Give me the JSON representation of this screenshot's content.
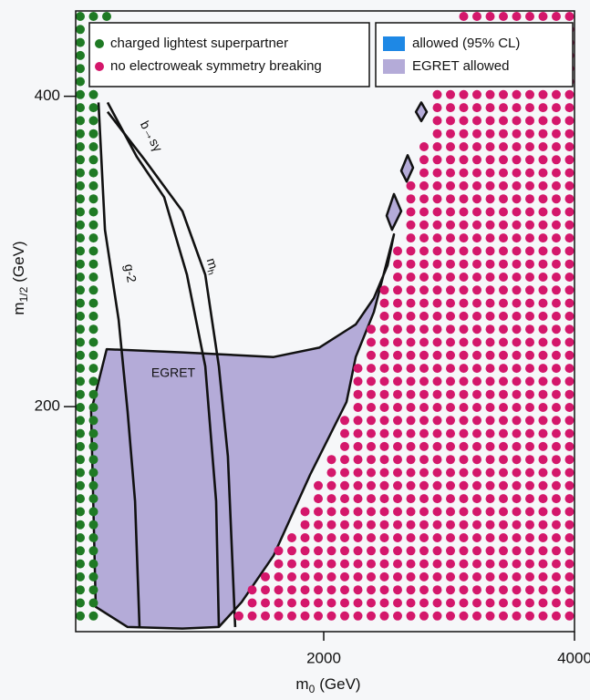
{
  "chart_data": {
    "type": "region",
    "xlabel": {
      "symbol": "m",
      "subscript": "0",
      "unit": "(GeV)"
    },
    "ylabel": {
      "symbol": "m",
      "subscript": "1/2",
      "unit": "(GeV)"
    },
    "xlim": [
      0,
      4000
    ],
    "ylim": [
      55,
      455
    ],
    "xticks": [
      2000,
      4000
    ],
    "yticks": [
      200,
      400
    ],
    "series": [
      {
        "name": "charged lightest superpartner",
        "color": "#1f7a24",
        "style": "dots",
        "polygons": [
          [
            [
              0,
              55
            ],
            [
              230,
              55
            ],
            [
              230,
              432
            ],
            [
              330,
              432
            ],
            [
              330,
              455
            ],
            [
              0,
              455
            ]
          ]
        ]
      },
      {
        "name": "no electroweak symmetry breaking",
        "color": "#d4176b",
        "style": "dots",
        "polygons": [
          [
            [
              3030,
              455
            ],
            [
              2836,
              402
            ],
            [
              2800,
              375
            ],
            [
              2727,
              358
            ],
            [
              2618,
              314
            ],
            [
              2545,
              291
            ],
            [
              2436,
              267
            ],
            [
              2291,
              238
            ],
            [
              2218,
              215
            ],
            [
              2109,
              180
            ],
            [
              1818,
              133
            ],
            [
              1600,
              104
            ],
            [
              1345,
              74
            ],
            [
              1236,
              55
            ],
            [
              4000,
              55
            ],
            [
              4000,
              455
            ]
          ]
        ]
      },
      {
        "name": "allowed (95% CL)",
        "color": "#1e88e5",
        "style": "fill",
        "polygons": [
          [
            [
              1455,
              185
            ],
            [
              1745,
              200
            ],
            [
              2036,
              220
            ],
            [
              2167,
              235
            ],
            [
              2218,
              226
            ],
            [
              2109,
              197
            ],
            [
              1891,
              162
            ],
            [
              1673,
              121
            ],
            [
              1527,
              106
            ],
            [
              1455,
              104
            ],
            [
              1396,
              144
            ],
            [
              1382,
              180
            ]
          ]
        ]
      },
      {
        "name": "EGRET allowed",
        "color": "#b4abd8",
        "style": "fill",
        "polygons": [
          [
            [
              269,
              237
            ],
            [
              873,
              235
            ],
            [
              1600,
              232
            ],
            [
              1964,
              238
            ],
            [
              2255,
              253
            ],
            [
              2400,
              270
            ],
            [
              2509,
              291
            ],
            [
              2560,
              311
            ],
            [
              2400,
              261
            ],
            [
              2255,
              232
            ],
            [
              2182,
              203
            ],
            [
              1891,
              156
            ],
            [
              1600,
              104
            ],
            [
              1345,
              74
            ],
            [
              1164,
              58
            ],
            [
              873,
              57
            ],
            [
              436,
              58
            ],
            [
              182,
              71
            ],
            [
              145,
              197
            ]
          ],
          [
            [
              2778,
              396
            ],
            [
              2822,
              390
            ],
            [
              2778,
              384
            ],
            [
              2735,
              390
            ]
          ],
          [
            [
              2669,
              362
            ],
            [
              2713,
              354
            ],
            [
              2662,
              345
            ],
            [
              2618,
              352
            ]
          ],
          [
            [
              2560,
              337
            ],
            [
              2618,
              326
            ],
            [
              2545,
              314
            ],
            [
              2502,
              323
            ]
          ]
        ]
      }
    ],
    "curves": [
      {
        "label": "b→sγ",
        "points": [
          [
            276,
            396
          ],
          [
            509,
            361
          ],
          [
            727,
            335
          ],
          [
            909,
            285
          ],
          [
            1055,
            226
          ],
          [
            1142,
            139
          ],
          [
            1164,
            58
          ]
        ]
      },
      {
        "label": "g-2",
        "points": [
          [
            204,
            396
          ],
          [
            255,
            314
          ],
          [
            364,
            256
          ],
          [
            436,
            197
          ],
          [
            495,
            139
          ],
          [
            531,
            58
          ]
        ]
      },
      {
        "label": "m",
        "label_subscript": "h",
        "points": [
          [
            276,
            390
          ],
          [
            582,
            358
          ],
          [
            873,
            326
          ],
          [
            1055,
            285
          ],
          [
            1164,
            226
          ],
          [
            1236,
            168
          ],
          [
            1294,
            58
          ]
        ]
      }
    ],
    "annotations": [
      "EGRET"
    ]
  }
}
